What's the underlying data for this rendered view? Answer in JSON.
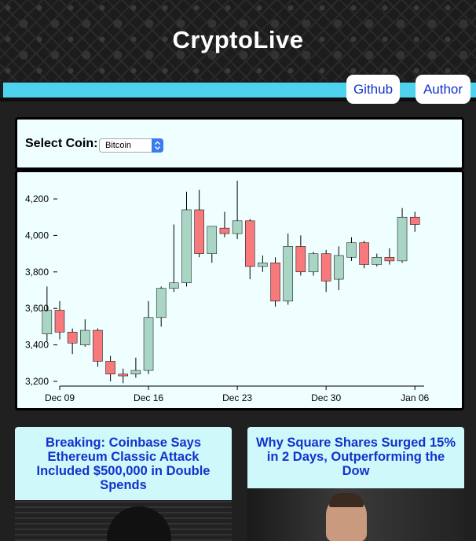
{
  "header": {
    "title": "CryptoLive"
  },
  "nav": {
    "github_label": "Github",
    "author_label": "Author"
  },
  "selector": {
    "label": "Select Coin:",
    "selected": "Bitcoin"
  },
  "chart_data": {
    "type": "candlestick",
    "title": "",
    "xlabel": "",
    "ylabel": "",
    "ylim": [
      3180,
      4300
    ],
    "x_ticks": [
      "Dec 09",
      "Dec 16",
      "Dec 23",
      "Dec 30",
      "Jan 06"
    ],
    "y_ticks": [
      3200,
      3400,
      3600,
      3800,
      4000,
      4200
    ],
    "y_tick_labels": [
      "3,200",
      "3,400",
      "3,600",
      "3,800",
      "4,000",
      "4,200"
    ],
    "up_color": "#a8d5c4",
    "down_color": "#f7797c",
    "candles": [
      {
        "date": "Dec 08",
        "open": 3460,
        "high": 3720,
        "low": 3420,
        "close": 3590
      },
      {
        "date": "Dec 09",
        "open": 3590,
        "high": 3640,
        "low": 3430,
        "close": 3470
      },
      {
        "date": "Dec 10",
        "open": 3470,
        "high": 3490,
        "low": 3350,
        "close": 3410
      },
      {
        "date": "Dec 11",
        "open": 3400,
        "high": 3540,
        "low": 3390,
        "close": 3480
      },
      {
        "date": "Dec 12",
        "open": 3480,
        "high": 3490,
        "low": 3280,
        "close": 3310
      },
      {
        "date": "Dec 13",
        "open": 3310,
        "high": 3340,
        "low": 3200,
        "close": 3240
      },
      {
        "date": "Dec 14",
        "open": 3240,
        "high": 3270,
        "low": 3190,
        "close": 3230
      },
      {
        "date": "Dec 15",
        "open": 3240,
        "high": 3330,
        "low": 3220,
        "close": 3260
      },
      {
        "date": "Dec 16",
        "open": 3260,
        "high": 3640,
        "low": 3240,
        "close": 3550
      },
      {
        "date": "Dec 17",
        "open": 3550,
        "high": 3720,
        "low": 3500,
        "close": 3710
      },
      {
        "date": "Dec 18",
        "open": 3710,
        "high": 4060,
        "low": 3690,
        "close": 3740
      },
      {
        "date": "Dec 19",
        "open": 3740,
        "high": 4240,
        "low": 3720,
        "close": 4140
      },
      {
        "date": "Dec 20",
        "open": 4140,
        "high": 4250,
        "low": 3880,
        "close": 3900
      },
      {
        "date": "Dec 21",
        "open": 3900,
        "high": 4050,
        "low": 3850,
        "close": 4050
      },
      {
        "date": "Dec 22",
        "open": 4040,
        "high": 4130,
        "low": 3990,
        "close": 4010
      },
      {
        "date": "Dec 23",
        "open": 4010,
        "high": 4300,
        "low": 3980,
        "close": 4080
      },
      {
        "date": "Dec 24",
        "open": 4080,
        "high": 4090,
        "low": 3760,
        "close": 3830
      },
      {
        "date": "Dec 25",
        "open": 3830,
        "high": 3890,
        "low": 3800,
        "close": 3850
      },
      {
        "date": "Dec 26",
        "open": 3850,
        "high": 3880,
        "low": 3610,
        "close": 3640
      },
      {
        "date": "Dec 27",
        "open": 3640,
        "high": 4010,
        "low": 3620,
        "close": 3940
      },
      {
        "date": "Dec 28",
        "open": 3940,
        "high": 4000,
        "low": 3780,
        "close": 3800
      },
      {
        "date": "Dec 29",
        "open": 3800,
        "high": 3910,
        "low": 3780,
        "close": 3900
      },
      {
        "date": "Dec 30",
        "open": 3900,
        "high": 3920,
        "low": 3690,
        "close": 3750
      },
      {
        "date": "Dec 31",
        "open": 3760,
        "high": 3940,
        "low": 3700,
        "close": 3890
      },
      {
        "date": "Jan 01",
        "open": 3880,
        "high": 3990,
        "low": 3860,
        "close": 3960
      },
      {
        "date": "Jan 02",
        "open": 3960,
        "high": 3970,
        "low": 3820,
        "close": 3840
      },
      {
        "date": "Jan 03",
        "open": 3840,
        "high": 3900,
        "low": 3830,
        "close": 3880
      },
      {
        "date": "Jan 04",
        "open": 3880,
        "high": 3930,
        "low": 3840,
        "close": 3860
      },
      {
        "date": "Jan 05",
        "open": 3860,
        "high": 4150,
        "low": 3850,
        "close": 4100
      },
      {
        "date": "Jan 06",
        "open": 4100,
        "high": 4130,
        "low": 4020,
        "close": 4060
      }
    ]
  },
  "news": [
    {
      "headline": "Breaking: Coinbase Says Ethereum Classic Attack Included $500,000 in Double Spends"
    },
    {
      "headline": "Why Square Shares Surged 15% in 2 Days, Outperforming the Dow"
    }
  ]
}
